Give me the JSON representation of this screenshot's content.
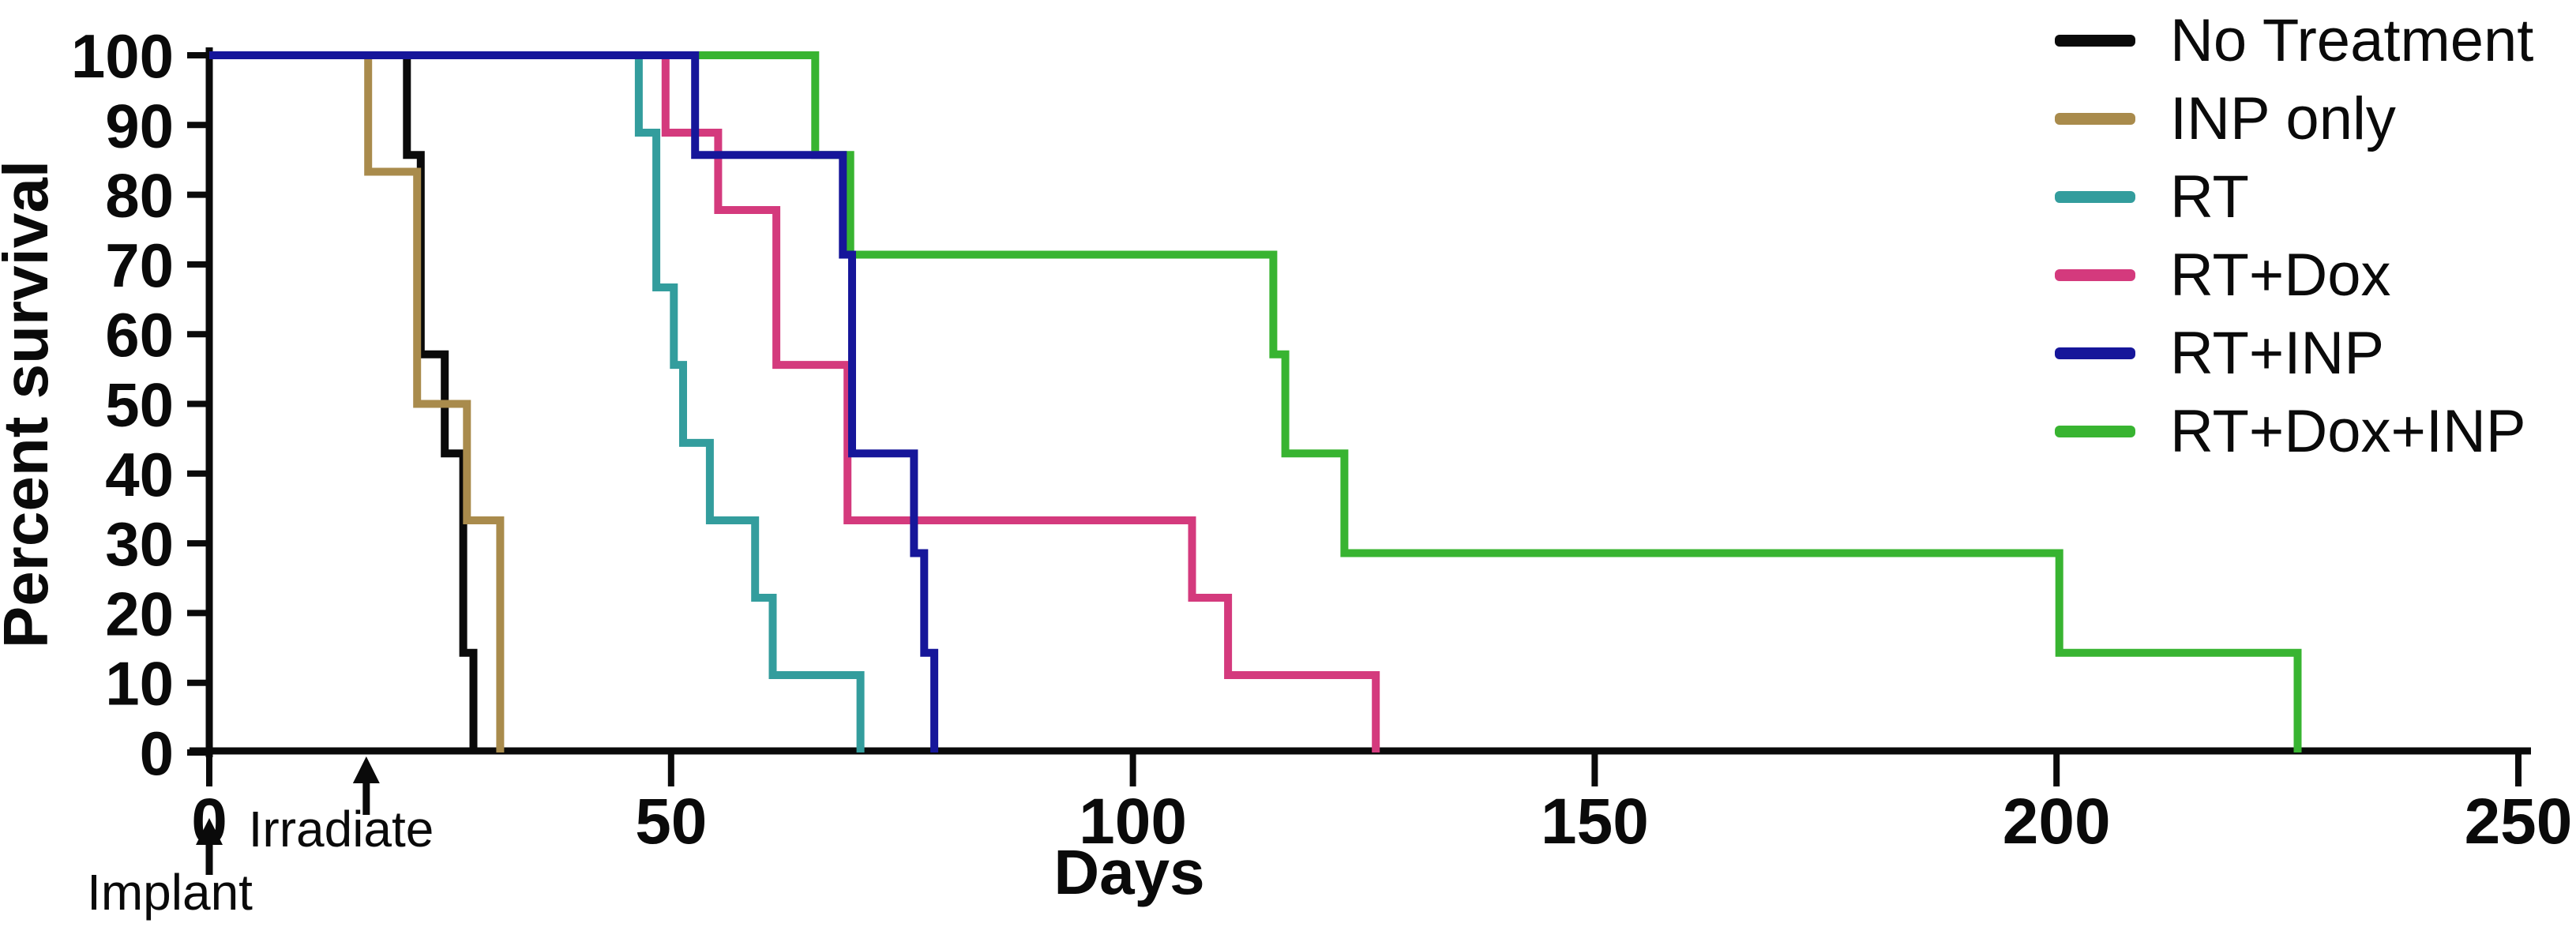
{
  "figure": {
    "background_color": "#ffffff",
    "axis_color": "#0a0a0a"
  },
  "chart_data": {
    "type": "line",
    "subtype": "kaplan-meier-survival-steps",
    "title": "",
    "xlabel": "Days",
    "ylabel": "Percent survival",
    "xlim": [
      0,
      250
    ],
    "ylim": [
      0,
      100
    ],
    "x_ticks": [
      0,
      50,
      100,
      150,
      200,
      250
    ],
    "y_ticks": [
      0,
      10,
      20,
      30,
      40,
      50,
      60,
      70,
      80,
      90,
      100
    ],
    "grid": false,
    "legend_position": "top-right",
    "series": [
      {
        "name": "No Treatment",
        "color": "#0a0a0a",
        "z": 1,
        "points": [
          [
            0,
            100
          ],
          [
            21.4,
            100
          ],
          [
            21.4,
            85.7
          ],
          [
            22.9,
            85.7
          ],
          [
            22.9,
            57.1
          ],
          [
            25.5,
            57.1
          ],
          [
            25.5,
            42.9
          ],
          [
            27.5,
            42.9
          ],
          [
            27.5,
            14.3
          ],
          [
            28.6,
            14.3
          ],
          [
            28.6,
            0
          ]
        ]
      },
      {
        "name": "INP only",
        "color": "#a98b4c",
        "z": 2,
        "points": [
          [
            0,
            100
          ],
          [
            17.2,
            100
          ],
          [
            17.2,
            83.3
          ],
          [
            22.5,
            83.3
          ],
          [
            22.5,
            50
          ],
          [
            27.9,
            50
          ],
          [
            27.9,
            33.3
          ],
          [
            31.5,
            33.3
          ],
          [
            31.5,
            0
          ]
        ]
      },
      {
        "name": "RT",
        "color": "#339d9d",
        "z": 3,
        "points": [
          [
            0,
            100
          ],
          [
            46.5,
            100
          ],
          [
            46.5,
            88.9
          ],
          [
            48.4,
            88.9
          ],
          [
            48.4,
            66.7
          ],
          [
            50.3,
            66.7
          ],
          [
            50.3,
            55.6
          ],
          [
            51.3,
            55.6
          ],
          [
            51.3,
            44.4
          ],
          [
            54.2,
            44.4
          ],
          [
            54.2,
            33.3
          ],
          [
            59.1,
            33.3
          ],
          [
            59.1,
            22.2
          ],
          [
            61,
            22.2
          ],
          [
            61,
            11.1
          ],
          [
            70.5,
            11.1
          ],
          [
            70.5,
            0
          ]
        ]
      },
      {
        "name": "RT+Dox",
        "color": "#d43a7d",
        "z": 4,
        "points": [
          [
            0,
            100
          ],
          [
            49.4,
            100
          ],
          [
            49.4,
            88.9
          ],
          [
            55.1,
            88.9
          ],
          [
            55.1,
            77.8
          ],
          [
            61.4,
            77.8
          ],
          [
            61.4,
            55.6
          ],
          [
            69.1,
            55.6
          ],
          [
            69.1,
            33.3
          ],
          [
            106.4,
            33.3
          ],
          [
            106.4,
            22.2
          ],
          [
            110.3,
            22.2
          ],
          [
            110.3,
            11.1
          ],
          [
            126.3,
            11.1
          ],
          [
            126.3,
            0
          ]
        ]
      },
      {
        "name": "RT+INP",
        "color": "#16169a",
        "z": 6,
        "points": [
          [
            0,
            100
          ],
          [
            52.6,
            100
          ],
          [
            52.6,
            85.7
          ],
          [
            68.6,
            85.7
          ],
          [
            68.6,
            71.4
          ],
          [
            69.6,
            71.4
          ],
          [
            69.6,
            42.9
          ],
          [
            76.3,
            42.9
          ],
          [
            76.3,
            28.6
          ],
          [
            77.4,
            28.6
          ],
          [
            77.4,
            14.3
          ],
          [
            78.5,
            14.3
          ],
          [
            78.5,
            0
          ]
        ]
      },
      {
        "name": "RT+Dox+INP",
        "color": "#38b431",
        "z": 5,
        "points": [
          [
            0,
            100
          ],
          [
            65.6,
            100
          ],
          [
            65.6,
            85.7
          ],
          [
            69.4,
            85.7
          ],
          [
            69.4,
            71.4
          ],
          [
            115.2,
            71.4
          ],
          [
            115.2,
            57.1
          ],
          [
            116.5,
            57.1
          ],
          [
            116.5,
            42.9
          ],
          [
            122.9,
            42.9
          ],
          [
            122.9,
            28.6
          ],
          [
            200.3,
            28.6
          ],
          [
            200.3,
            14.3
          ],
          [
            226.1,
            14.3
          ],
          [
            226.1,
            0
          ]
        ]
      }
    ],
    "annotations": [
      {
        "label": "Implant",
        "day": 0
      },
      {
        "label": "Irradiate",
        "day": 17
      }
    ]
  }
}
